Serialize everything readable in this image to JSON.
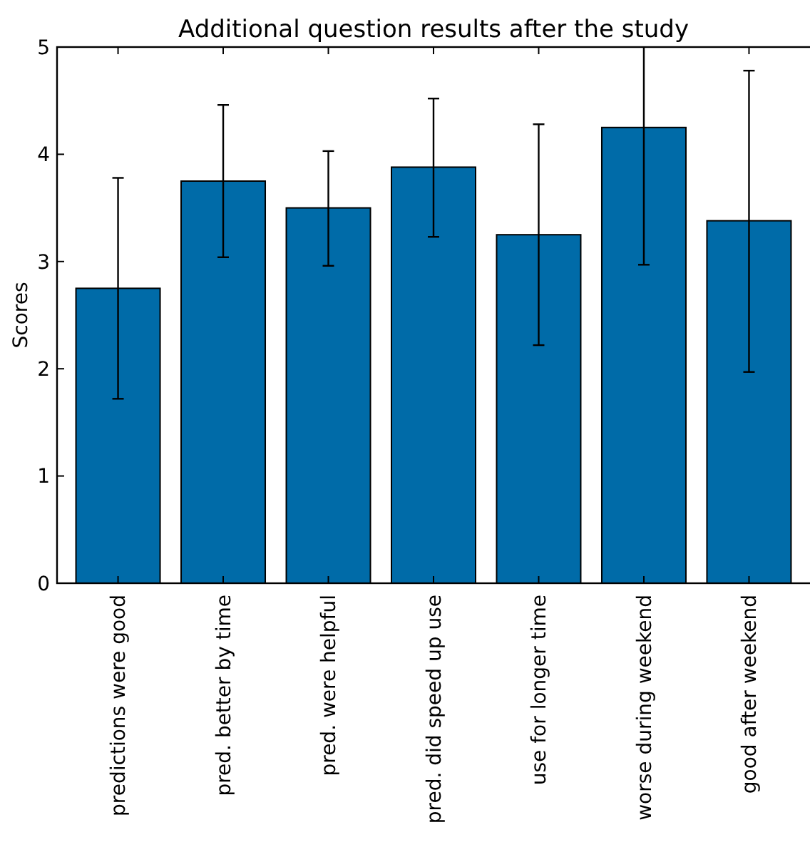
{
  "chart_data": {
    "type": "bar",
    "title": "Additional question results after the study",
    "ylabel": "Scores",
    "categories": [
      "predictions were good",
      "pred. better by time",
      "pred. were helpful",
      "pred. did speed up use",
      "use for longer time",
      "worse during weekend",
      "good after weekend"
    ],
    "values": [
      2.75,
      3.75,
      3.5,
      3.88,
      3.25,
      4.25,
      3.38
    ],
    "errors": [
      [
        1.72,
        3.78
      ],
      [
        3.04,
        4.46
      ],
      [
        2.96,
        4.03
      ],
      [
        3.23,
        4.52
      ],
      [
        2.22,
        4.28
      ],
      [
        2.97,
        5.0
      ],
      [
        1.97,
        4.78
      ]
    ],
    "color": "#006ba8",
    "ylim": [
      0,
      5
    ],
    "yticks": [
      0,
      1,
      2,
      3,
      4,
      5
    ]
  }
}
